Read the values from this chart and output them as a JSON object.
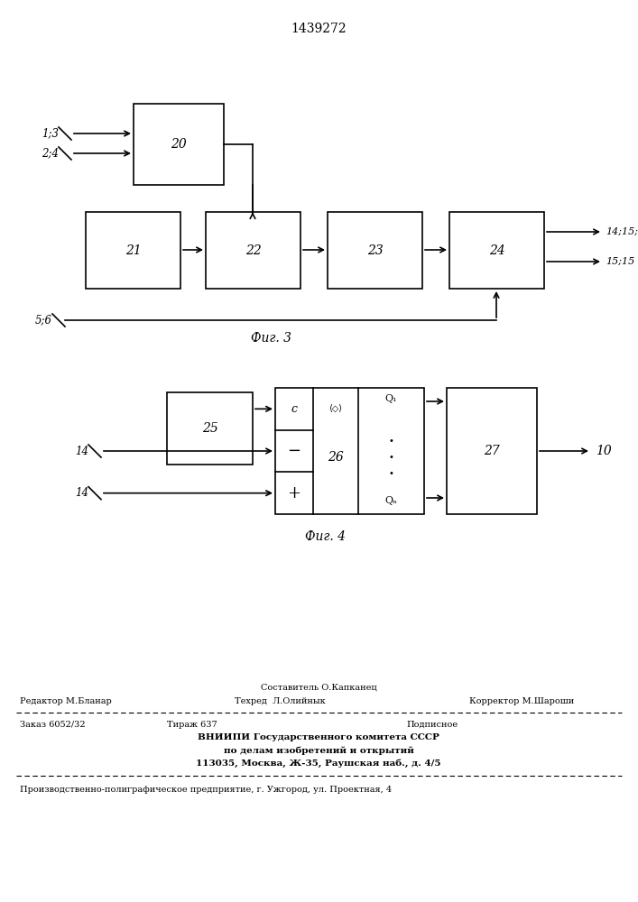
{
  "patent_number": "1439272",
  "bg_color": "#ffffff",
  "fig3_caption": "Фиг. 3",
  "fig4_caption": "Фиг. 4",
  "footer": {
    "line1_center": "Составитель О.Капканец",
    "line2_left": "Редактор М.Бланар",
    "line2_center": "Техред  Л.Олийнык",
    "line2_right": "Корректор М.Шароши",
    "line3_left": "Заказ 6052/32",
    "line3_center": "Тираж 637",
    "line3_right": "Подписное",
    "line4": "ВНИИПИ Государственного комитета СССР",
    "line5": "по делам изобретений и открытий",
    "line6": "113035, Москва, Ж-35, Раушская наб., д. 4/5",
    "line7": "Производственно-полиграфическое предприятие, г. Ужгород, ул. Проектная, 4"
  }
}
